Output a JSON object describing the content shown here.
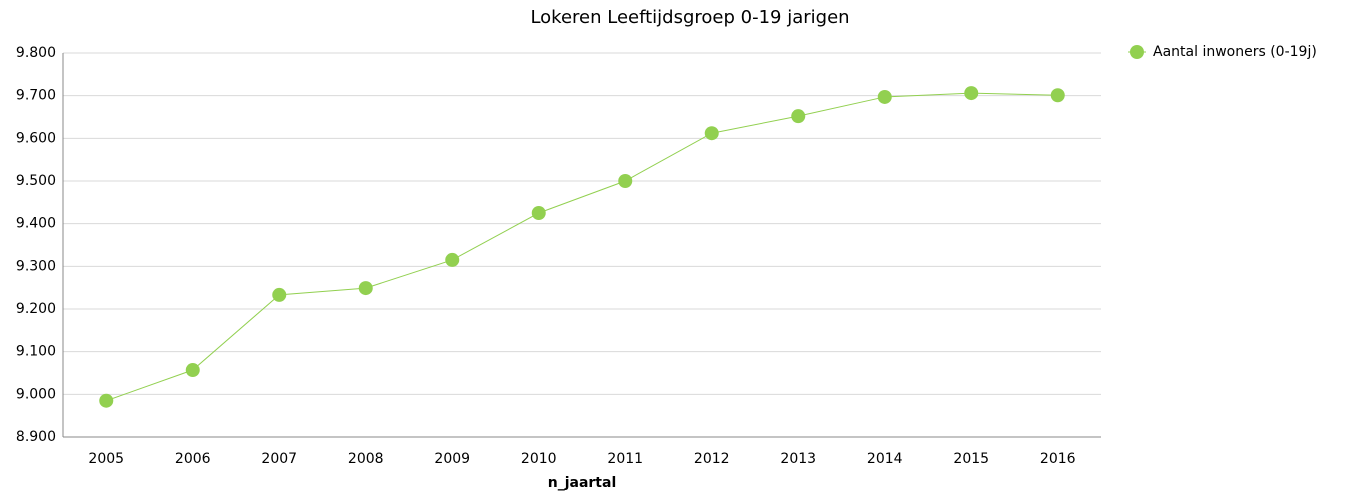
{
  "chart_data": {
    "type": "line",
    "title": "Lokeren  Leeftijdsgroep 0-19 jarigen",
    "x_label": "n_jaartal",
    "categories": [
      "2005",
      "2006",
      "2007",
      "2008",
      "2009",
      "2010",
      "2011",
      "2012",
      "2013",
      "2014",
      "2015",
      "2016"
    ],
    "series": [
      {
        "name": "Aantal inwoners (0-19j)",
        "color": "#92d050",
        "values": [
          8985,
          9057,
          9233,
          9249,
          9315,
          9425,
          9500,
          9612,
          9652,
          9697,
          9706,
          9701
        ]
      }
    ],
    "ylim": [
      8900,
      9800
    ],
    "yticks": [
      {
        "value": 8900,
        "label": "8.900"
      },
      {
        "value": 9000,
        "label": "9.000"
      },
      {
        "value": 9100,
        "label": "9.100"
      },
      {
        "value": 9200,
        "label": "9.200"
      },
      {
        "value": 9300,
        "label": "9.300"
      },
      {
        "value": 9400,
        "label": "9.400"
      },
      {
        "value": 9500,
        "label": "9.500"
      },
      {
        "value": 9600,
        "label": "9.600"
      },
      {
        "value": 9700,
        "label": "9.700"
      },
      {
        "value": 9800,
        "label": "9.800"
      }
    ],
    "grid": true,
    "legend": "right"
  }
}
